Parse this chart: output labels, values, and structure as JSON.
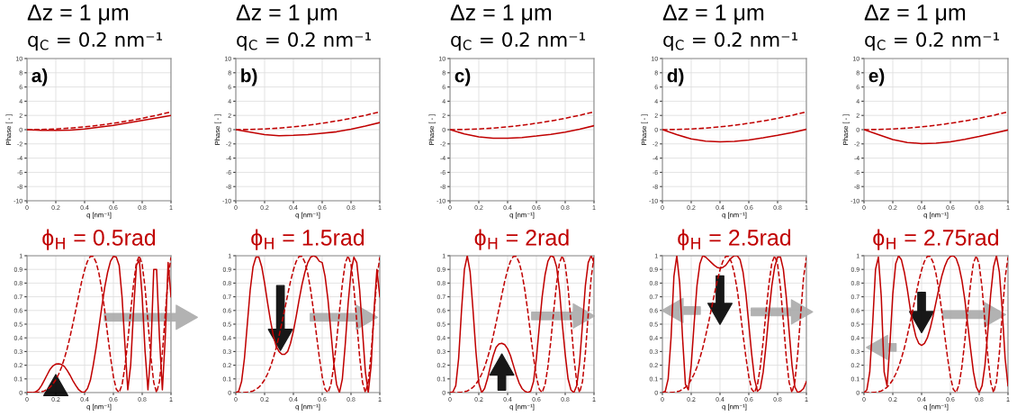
{
  "chart_data": [
    {
      "type": "line",
      "title": "Δz = 1 μm",
      "subtitle": "q$_{C}$ = 0.2 nm⁻¹",
      "annotations": [
        "a)"
      ],
      "xlabel": "q [nm⁻¹]",
      "ylabel": "Phase [ - ]",
      "xlim": [
        0,
        1
      ],
      "ylim": [
        -10,
        10
      ],
      "xticks": [
        0,
        0.2,
        0.4,
        0.6,
        0.8,
        1
      ],
      "yticks": [
        -10,
        -8,
        -6,
        -4,
        -2,
        0,
        2,
        4,
        6,
        8,
        10
      ],
      "grid": true,
      "x": [
        0,
        0.1,
        0.2,
        0.3,
        0.4,
        0.5,
        0.6,
        0.7,
        0.8,
        0.9,
        1
      ],
      "series": [
        {
          "color": "#c00000",
          "line_style": "dashed",
          "values": [
            0,
            0.03,
            0.1,
            0.22,
            0.4,
            0.62,
            0.9,
            1.22,
            1.6,
            2.02,
            2.5
          ]
        },
        {
          "color": "#c00000",
          "line_style": "solid",
          "values": [
            0,
            -0.1,
            -0.1,
            -0.05,
            0.1,
            0.35,
            0.6,
            0.95,
            1.3,
            1.65,
            2.0
          ]
        }
      ]
    },
    {
      "type": "line",
      "title": "Δz = 1 μm",
      "subtitle": "q$_{C}$ = 0.2 nm⁻¹",
      "annotations": [
        "b)"
      ],
      "xlabel": "q [nm⁻¹]",
      "ylabel": "Phase [ - ]",
      "xlim": [
        0,
        1
      ],
      "ylim": [
        -10,
        10
      ],
      "xticks": [
        0,
        0.2,
        0.4,
        0.6,
        0.8,
        1
      ],
      "yticks": [
        -10,
        -8,
        -6,
        -4,
        -2,
        0,
        2,
        4,
        6,
        8,
        10
      ],
      "grid": true,
      "x": [
        0,
        0.1,
        0.2,
        0.3,
        0.4,
        0.5,
        0.6,
        0.7,
        0.8,
        0.9,
        1
      ],
      "series": [
        {
          "color": "#c00000",
          "line_style": "dashed",
          "values": [
            0,
            0.03,
            0.1,
            0.22,
            0.4,
            0.62,
            0.9,
            1.22,
            1.6,
            2.02,
            2.5
          ]
        },
        {
          "color": "#c00000",
          "line_style": "solid",
          "values": [
            0,
            -0.35,
            -0.7,
            -0.85,
            -0.8,
            -0.7,
            -0.5,
            -0.3,
            0.05,
            0.5,
            1.0
          ]
        }
      ]
    },
    {
      "type": "line",
      "title": "Δz = 1 μm",
      "subtitle": "q$_{C}$ = 0.2 nm⁻¹",
      "annotations": [
        "c)"
      ],
      "xlabel": "q [nm⁻¹]",
      "ylabel": "Phase [ - ]",
      "xlim": [
        0,
        1
      ],
      "ylim": [
        -10,
        10
      ],
      "xticks": [
        0,
        0.2,
        0.4,
        0.6,
        0.8,
        1
      ],
      "yticks": [
        -10,
        -8,
        -6,
        -4,
        -2,
        0,
        2,
        4,
        6,
        8,
        10
      ],
      "grid": true,
      "x": [
        0,
        0.1,
        0.2,
        0.3,
        0.4,
        0.5,
        0.6,
        0.7,
        0.8,
        0.9,
        1
      ],
      "series": [
        {
          "color": "#c00000",
          "line_style": "dashed",
          "values": [
            0,
            0.03,
            0.1,
            0.22,
            0.4,
            0.62,
            0.9,
            1.22,
            1.6,
            2.02,
            2.5
          ]
        },
        {
          "color": "#c00000",
          "line_style": "solid",
          "values": [
            0,
            -0.6,
            -1.0,
            -1.2,
            -1.2,
            -1.1,
            -0.9,
            -0.65,
            -0.35,
            0.05,
            0.55
          ]
        }
      ]
    },
    {
      "type": "line",
      "title": "Δz = 1 μm",
      "subtitle": "q$_{C}$ = 0.2 nm⁻¹",
      "annotations": [
        "d)"
      ],
      "xlabel": "q [nm⁻¹]",
      "ylabel": "Phase [ - ]",
      "xlim": [
        0,
        1
      ],
      "ylim": [
        -10,
        10
      ],
      "xticks": [
        0,
        0.2,
        0.4,
        0.6,
        0.8,
        1
      ],
      "yticks": [
        -10,
        -8,
        -6,
        -4,
        -2,
        0,
        2,
        4,
        6,
        8,
        10
      ],
      "grid": true,
      "x": [
        0,
        0.1,
        0.2,
        0.3,
        0.4,
        0.5,
        0.6,
        0.7,
        0.8,
        0.9,
        1
      ],
      "series": [
        {
          "color": "#c00000",
          "line_style": "dashed",
          "values": [
            0,
            0.03,
            0.1,
            0.22,
            0.4,
            0.62,
            0.9,
            1.22,
            1.6,
            2.02,
            2.5
          ]
        },
        {
          "color": "#c00000",
          "line_style": "solid",
          "values": [
            0,
            -0.7,
            -1.3,
            -1.6,
            -1.7,
            -1.65,
            -1.45,
            -1.15,
            -0.8,
            -0.4,
            0.05
          ]
        }
      ]
    },
    {
      "type": "line",
      "title": "Δz = 1 μm",
      "subtitle": "q$_{C}$ = 0.2 nm⁻¹",
      "annotations": [
        "e)"
      ],
      "xlabel": "q [nm⁻¹]",
      "ylabel": "Phase [ - ]",
      "xlim": [
        0,
        1
      ],
      "ylim": [
        -10,
        10
      ],
      "xticks": [
        0,
        0.2,
        0.4,
        0.6,
        0.8,
        1
      ],
      "yticks": [
        -10,
        -8,
        -6,
        -4,
        -2,
        0,
        2,
        4,
        6,
        8,
        10
      ],
      "grid": true,
      "x": [
        0,
        0.1,
        0.2,
        0.3,
        0.4,
        0.5,
        0.6,
        0.7,
        0.8,
        0.9,
        1
      ],
      "series": [
        {
          "color": "#c00000",
          "line_style": "dashed",
          "values": [
            0,
            0.03,
            0.1,
            0.22,
            0.4,
            0.62,
            0.9,
            1.22,
            1.6,
            2.02,
            2.5
          ]
        },
        {
          "color": "#c00000",
          "line_style": "solid",
          "values": [
            0,
            -0.7,
            -1.4,
            -1.8,
            -1.95,
            -1.9,
            -1.7,
            -1.35,
            -0.95,
            -0.5,
            -0.05
          ]
        }
      ]
    },
    {
      "type": "line",
      "title": "ϕ$_{H}$ = 0.5rad",
      "xlabel": "q [nm⁻¹]",
      "xlim": [
        0,
        1
      ],
      "ylim": [
        0,
        1
      ],
      "xticks": [
        0,
        0.2,
        0.4,
        0.6,
        0.8,
        1
      ],
      "yticks": [
        0,
        0.1,
        0.2,
        0.3,
        0.4,
        0.5,
        0.6,
        0.7,
        0.8,
        0.9,
        1
      ],
      "grid": true,
      "x": [
        0,
        0.02,
        0.04,
        0.06,
        0.08,
        0.1,
        0.12,
        0.14,
        0.16,
        0.18,
        0.2,
        0.22,
        0.24,
        0.26,
        0.28,
        0.3,
        0.32,
        0.34,
        0.36,
        0.38,
        0.4,
        0.42,
        0.44,
        0.46,
        0.48,
        0.5,
        0.52,
        0.54,
        0.56,
        0.58,
        0.6,
        0.62,
        0.64,
        0.66,
        0.68,
        0.7,
        0.72,
        0.74,
        0.76,
        0.78,
        0.8,
        0.82,
        0.84,
        0.86,
        0.88,
        0.9,
        0.92,
        0.94,
        0.96,
        0.98,
        1
      ],
      "series": [
        {
          "color": "#c00000",
          "line_style": "dashed",
          "values": [
            0,
            0,
            0,
            0.001,
            0.003,
            0.006,
            0.012,
            0.023,
            0.039,
            0.062,
            0.094,
            0.135,
            0.186,
            0.251,
            0.325,
            0.413,
            0.509,
            0.61,
            0.714,
            0.813,
            0.896,
            0.96,
            0.995,
            0.995,
            0.952,
            0.869,
            0.748,
            0.596,
            0.423,
            0.258,
            0.116,
            0.025,
            0.001,
            0.057,
            0.189,
            0.376,
            0.595,
            0.794,
            0.948,
            0.999,
            0.936,
            0.765,
            0.519,
            0.263,
            0.075,
            0,
            0.08,
            0.287,
            0.57,
            0.838,
            0.989
          ]
        },
        {
          "color": "#c00000",
          "line_style": "solid",
          "values": [
            0,
            0,
            0,
            0.005,
            0.02,
            0.05,
            0.09,
            0.13,
            0.17,
            0.195,
            0.208,
            0.21,
            0.205,
            0.19,
            0.16,
            0.125,
            0.085,
            0.05,
            0.02,
            0.004,
            0.003,
            0.03,
            0.09,
            0.2,
            0.33,
            0.48,
            0.63,
            0.77,
            0.88,
            0.96,
            0.995,
            0.99,
            0.93,
            0.7,
            0.35,
            0.02,
            0.2,
            0.6,
            0.93,
            0.97,
            0.7,
            0.3,
            0.02,
            0.3,
            0.9,
            0.9,
            0.4,
            0.02,
            0.4,
            0.95,
            0.7
          ]
        }
      ]
    },
    {
      "type": "line",
      "title": "ϕ$_{H}$ = 1.5rad",
      "xlabel": "q [nm⁻¹]",
      "xlim": [
        0,
        1
      ],
      "ylim": [
        0,
        1
      ],
      "xticks": [
        0,
        0.2,
        0.4,
        0.6,
        0.8,
        1
      ],
      "yticks": [
        0,
        0.1,
        0.2,
        0.3,
        0.4,
        0.5,
        0.6,
        0.7,
        0.8,
        0.9,
        1
      ],
      "grid": true,
      "x": [
        0,
        0.02,
        0.04,
        0.06,
        0.08,
        0.1,
        0.12,
        0.14,
        0.16,
        0.18,
        0.2,
        0.22,
        0.24,
        0.26,
        0.28,
        0.3,
        0.32,
        0.34,
        0.36,
        0.38,
        0.4,
        0.42,
        0.44,
        0.46,
        0.48,
        0.5,
        0.52,
        0.54,
        0.56,
        0.58,
        0.6,
        0.62,
        0.64,
        0.66,
        0.68,
        0.7,
        0.72,
        0.74,
        0.76,
        0.78,
        0.8,
        0.82,
        0.84,
        0.86,
        0.88,
        0.9,
        0.92,
        0.94,
        0.96,
        0.98,
        1
      ],
      "series": [
        {
          "color": "#c00000",
          "line_style": "dashed",
          "values": [
            0,
            0,
            0,
            0.001,
            0.003,
            0.006,
            0.012,
            0.023,
            0.039,
            0.062,
            0.094,
            0.135,
            0.186,
            0.251,
            0.325,
            0.413,
            0.509,
            0.61,
            0.714,
            0.813,
            0.896,
            0.96,
            0.995,
            0.995,
            0.952,
            0.869,
            0.748,
            0.596,
            0.423,
            0.258,
            0.116,
            0.025,
            0.001,
            0.057,
            0.189,
            0.376,
            0.595,
            0.794,
            0.948,
            0.999,
            0.936,
            0.765,
            0.519,
            0.263,
            0.075,
            0,
            0.08,
            0.287,
            0.57,
            0.838,
            0.989
          ]
        },
        {
          "color": "#c00000",
          "line_style": "solid",
          "values": [
            0,
            0.01,
            0.08,
            0.25,
            0.5,
            0.75,
            0.92,
            0.99,
            0.99,
            0.92,
            0.8,
            0.66,
            0.53,
            0.42,
            0.34,
            0.3,
            0.28,
            0.28,
            0.3,
            0.36,
            0.45,
            0.56,
            0.68,
            0.79,
            0.88,
            0.95,
            0.99,
            1.0,
            0.99,
            0.96,
            0.95,
            0.85,
            0.68,
            0.45,
            0.22,
            0.06,
            0,
            0.1,
            0.35,
            0.65,
            0.88,
            0.99,
            0.95,
            0.75,
            0.45,
            0.15,
            0,
            0.2,
            0.6,
            0.9,
            0.7
          ]
        }
      ]
    },
    {
      "type": "line",
      "title": "ϕ$_{H}$ = 2rad",
      "xlabel": "q [nm⁻¹]",
      "xlim": [
        0,
        1
      ],
      "ylim": [
        0,
        1
      ],
      "xticks": [
        0,
        0.2,
        0.4,
        0.6,
        0.8,
        1
      ],
      "yticks": [
        0,
        0.1,
        0.2,
        0.3,
        0.4,
        0.5,
        0.6,
        0.7,
        0.8,
        0.9,
        1
      ],
      "grid": true,
      "x": [
        0,
        0.02,
        0.04,
        0.06,
        0.08,
        0.1,
        0.12,
        0.14,
        0.16,
        0.18,
        0.2,
        0.22,
        0.24,
        0.26,
        0.28,
        0.3,
        0.32,
        0.34,
        0.36,
        0.38,
        0.4,
        0.42,
        0.44,
        0.46,
        0.48,
        0.5,
        0.52,
        0.54,
        0.56,
        0.58,
        0.6,
        0.62,
        0.64,
        0.66,
        0.68,
        0.7,
        0.72,
        0.74,
        0.76,
        0.78,
        0.8,
        0.82,
        0.84,
        0.86,
        0.88,
        0.9,
        0.92,
        0.94,
        0.96,
        0.98,
        1
      ],
      "series": [
        {
          "color": "#c00000",
          "line_style": "dashed",
          "values": [
            0,
            0,
            0,
            0.001,
            0.003,
            0.006,
            0.012,
            0.023,
            0.039,
            0.062,
            0.094,
            0.135,
            0.186,
            0.251,
            0.325,
            0.413,
            0.509,
            0.61,
            0.714,
            0.813,
            0.896,
            0.96,
            0.995,
            0.995,
            0.952,
            0.869,
            0.748,
            0.596,
            0.423,
            0.258,
            0.116,
            0.025,
            0.001,
            0.057,
            0.189,
            0.376,
            0.595,
            0.794,
            0.948,
            0.999,
            0.936,
            0.765,
            0.519,
            0.263,
            0.075,
            0,
            0.08,
            0.287,
            0.57,
            0.838,
            0.989
          ]
        },
        {
          "color": "#c00000",
          "line_style": "solid",
          "values": [
            0,
            0.005,
            0.05,
            0.25,
            0.6,
            0.9,
            1.0,
            0.88,
            0.6,
            0.3,
            0.07,
            0,
            0.03,
            0.1,
            0.19,
            0.27,
            0.33,
            0.355,
            0.36,
            0.35,
            0.32,
            0.27,
            0.2,
            0.13,
            0.07,
            0.03,
            0.01,
            0,
            0.01,
            0.08,
            0.25,
            0.48,
            0.7,
            0.86,
            0.96,
            1.0,
            0.99,
            0.92,
            0.75,
            0.5,
            0.28,
            0.1,
            0.02,
            0,
            0.05,
            0.22,
            0.5,
            0.78,
            0.95,
            1.0,
            0.95
          ]
        }
      ]
    },
    {
      "type": "line",
      "title": "ϕ$_{H}$ = 2.5rad",
      "xlabel": "q [nm⁻¹]",
      "xlim": [
        0,
        1
      ],
      "ylim": [
        0,
        1
      ],
      "xticks": [
        0,
        0.2,
        0.4,
        0.6,
        0.8,
        1
      ],
      "yticks": [
        0,
        0.1,
        0.2,
        0.3,
        0.4,
        0.5,
        0.6,
        0.7,
        0.8,
        0.9,
        1
      ],
      "grid": true,
      "x": [
        0,
        0.02,
        0.04,
        0.06,
        0.08,
        0.1,
        0.12,
        0.14,
        0.16,
        0.18,
        0.2,
        0.22,
        0.24,
        0.26,
        0.28,
        0.3,
        0.32,
        0.34,
        0.36,
        0.38,
        0.4,
        0.42,
        0.44,
        0.46,
        0.48,
        0.5,
        0.52,
        0.54,
        0.56,
        0.58,
        0.6,
        0.62,
        0.64,
        0.66,
        0.68,
        0.7,
        0.72,
        0.74,
        0.76,
        0.78,
        0.8,
        0.82,
        0.84,
        0.86,
        0.88,
        0.9,
        0.92,
        0.94,
        0.96,
        0.98,
        1
      ],
      "series": [
        {
          "color": "#c00000",
          "line_style": "dashed",
          "values": [
            0,
            0,
            0,
            0.001,
            0.003,
            0.006,
            0.012,
            0.023,
            0.039,
            0.062,
            0.094,
            0.135,
            0.186,
            0.251,
            0.325,
            0.413,
            0.509,
            0.61,
            0.714,
            0.813,
            0.896,
            0.96,
            0.995,
            0.995,
            0.952,
            0.869,
            0.748,
            0.596,
            0.423,
            0.258,
            0.116,
            0.025,
            0.001,
            0.057,
            0.189,
            0.376,
            0.595,
            0.794,
            0.948,
            0.999,
            0.936,
            0.765,
            0.519,
            0.263,
            0.075,
            0,
            0.08,
            0.287,
            0.57,
            0.838,
            0.989
          ]
        },
        {
          "color": "#c00000",
          "line_style": "solid",
          "values": [
            0,
            0.01,
            0.1,
            0.4,
            0.85,
            1.0,
            0.8,
            0.4,
            0.06,
            0.02,
            0.2,
            0.5,
            0.78,
            0.94,
            1.0,
            0.99,
            0.97,
            0.95,
            0.93,
            0.915,
            0.91,
            0.915,
            0.93,
            0.96,
            0.985,
            1.0,
            1.0,
            0.97,
            0.88,
            0.72,
            0.5,
            0.28,
            0.1,
            0.01,
            0.03,
            0.15,
            0.35,
            0.58,
            0.78,
            0.92,
            0.99,
            0.99,
            0.9,
            0.7,
            0.45,
            0.2,
            0.04,
            0,
            0.01,
            0.03,
            0.08
          ]
        }
      ]
    },
    {
      "type": "line",
      "title": "ϕ$_{H}$ = 2.75rad",
      "xlabel": "q [nm⁻¹]",
      "xlim": [
        0,
        1
      ],
      "ylim": [
        0,
        1
      ],
      "xticks": [
        0,
        0.2,
        0.4,
        0.6,
        0.8,
        1
      ],
      "yticks": [
        0,
        0.1,
        0.2,
        0.3,
        0.4,
        0.5,
        0.6,
        0.7,
        0.8,
        0.9,
        1
      ],
      "grid": true,
      "x": [
        0,
        0.02,
        0.04,
        0.06,
        0.08,
        0.1,
        0.12,
        0.14,
        0.16,
        0.18,
        0.2,
        0.22,
        0.24,
        0.26,
        0.28,
        0.3,
        0.32,
        0.34,
        0.36,
        0.38,
        0.4,
        0.42,
        0.44,
        0.46,
        0.48,
        0.5,
        0.52,
        0.54,
        0.56,
        0.58,
        0.6,
        0.62,
        0.64,
        0.66,
        0.68,
        0.7,
        0.72,
        0.74,
        0.76,
        0.78,
        0.8,
        0.82,
        0.84,
        0.86,
        0.88,
        0.9,
        0.92,
        0.94,
        0.96,
        0.98,
        1
      ],
      "series": [
        {
          "color": "#c00000",
          "line_style": "dashed",
          "values": [
            0,
            0,
            0,
            0.001,
            0.003,
            0.006,
            0.012,
            0.023,
            0.039,
            0.062,
            0.094,
            0.135,
            0.186,
            0.251,
            0.325,
            0.413,
            0.509,
            0.61,
            0.714,
            0.813,
            0.896,
            0.96,
            0.995,
            0.995,
            0.952,
            0.869,
            0.748,
            0.596,
            0.423,
            0.258,
            0.116,
            0.025,
            0.001,
            0.057,
            0.189,
            0.376,
            0.595,
            0.794,
            0.948,
            0.999,
            0.936,
            0.765,
            0.519,
            0.263,
            0.075,
            0,
            0.08,
            0.287,
            0.57,
            0.838,
            0.989
          ]
        },
        {
          "color": "#c00000",
          "line_style": "solid",
          "values": [
            0,
            0.02,
            0.15,
            0.5,
            0.9,
            0.99,
            0.7,
            0.15,
            0.05,
            0.35,
            0.72,
            0.94,
            1.0,
            0.97,
            0.88,
            0.76,
            0.62,
            0.5,
            0.41,
            0.36,
            0.345,
            0.36,
            0.4,
            0.47,
            0.56,
            0.66,
            0.76,
            0.85,
            0.92,
            0.97,
            0.995,
            1.0,
            0.98,
            0.92,
            0.82,
            0.68,
            0.5,
            0.32,
            0.15,
            0.04,
            0,
            0.05,
            0.2,
            0.45,
            0.72,
            0.92,
            1.0,
            0.88,
            0.6,
            0.25,
            0.05
          ]
        }
      ]
    }
  ]
}
